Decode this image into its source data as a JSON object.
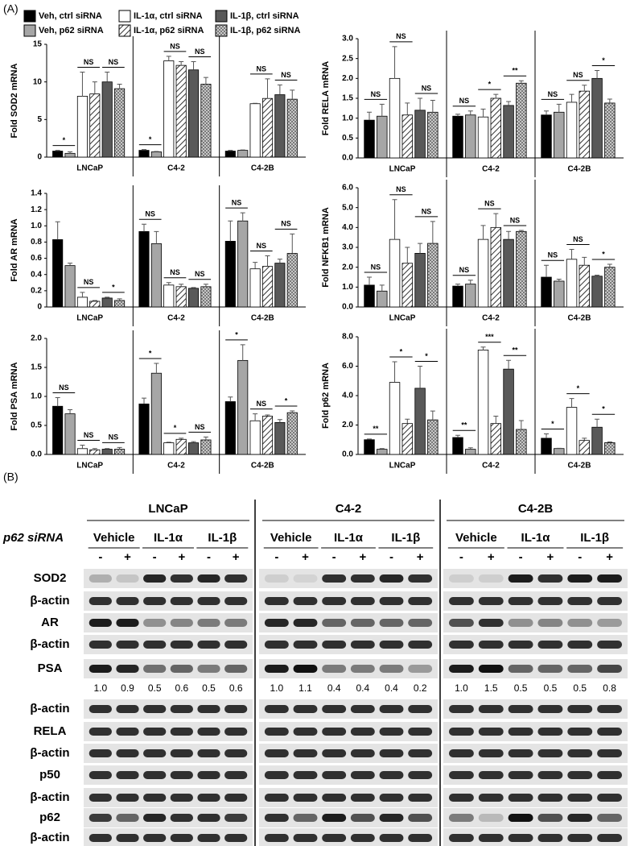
{
  "panel_a_label": "(A)",
  "legend": [
    {
      "name": "Veh, ctrl siRNA",
      "color": "#000000"
    },
    {
      "name": "Veh, p62 siRNA",
      "color": "#a6a6a6"
    },
    {
      "name": "IL-1α, ctrl siRNA",
      "color": "#ffffff"
    },
    {
      "name": "IL-1α, p62 siRNA",
      "color": "#ffffff",
      "pattern": "hatch"
    },
    {
      "name": "IL-1β, ctrl siRNA",
      "color": "#595959"
    },
    {
      "name": "IL-1β, p62 siRNA",
      "color": "#a6a6a6",
      "pattern": "check"
    }
  ],
  "chart_data": [
    {
      "type": "bar",
      "ylabel": "Fold SOD2 mRNA",
      "categories": [
        "LNCaP",
        "C4-2",
        "C4-2B"
      ],
      "series": [
        {
          "values": [
            0.8,
            0.9,
            0.8
          ],
          "errors": [
            0.1,
            0.1,
            0.1
          ]
        },
        {
          "values": [
            0.5,
            0.7,
            0.9
          ],
          "errors": [
            0.2,
            0.05,
            0.05
          ]
        },
        {
          "values": [
            8.1,
            12.8,
            7.1
          ],
          "errors": [
            3.2,
            0.6,
            0.05
          ]
        },
        {
          "values": [
            8.4,
            12.2,
            7.8
          ],
          "errors": [
            1.6,
            0.5,
            2.6
          ]
        },
        {
          "values": [
            10.0,
            11.6,
            8.3
          ],
          "errors": [
            1.3,
            1.1,
            1.3
          ]
        },
        {
          "values": [
            9.1,
            9.7,
            7.7
          ],
          "errors": [
            0.6,
            0.9,
            1.2
          ]
        }
      ],
      "significance": [
        [
          "*",
          "NS",
          "NS"
        ],
        [
          "*",
          "NS",
          "NS"
        ],
        [
          null,
          "NS",
          "NS"
        ]
      ],
      "ylim": [
        0,
        15
      ],
      "yticks": [
        0,
        5,
        10,
        15
      ]
    },
    {
      "type": "bar",
      "ylabel": "Fold RELA mRNA",
      "categories": [
        "LNCaP",
        "C4-2",
        "C4-2B"
      ],
      "series": [
        {
          "values": [
            0.95,
            1.05,
            1.08
          ],
          "errors": [
            0.2,
            0.05,
            0.1
          ]
        },
        {
          "values": [
            1.05,
            1.08,
            1.15
          ],
          "errors": [
            0.3,
            0.1,
            0.2
          ]
        },
        {
          "values": [
            2.0,
            1.03,
            1.4
          ],
          "errors": [
            0.8,
            0.2,
            0.2
          ]
        },
        {
          "values": [
            1.08,
            1.5,
            1.68
          ],
          "errors": [
            0.3,
            0.1,
            0.15
          ]
        },
        {
          "values": [
            1.2,
            1.32,
            2.0
          ],
          "errors": [
            0.3,
            0.1,
            0.2
          ]
        },
        {
          "values": [
            1.15,
            1.88,
            1.38
          ],
          "errors": [
            0.3,
            0.06,
            0.1
          ]
        }
      ],
      "significance": [
        [
          "NS",
          "NS",
          "NS"
        ],
        [
          "NS",
          "*",
          "**"
        ],
        [
          "NS",
          "NS",
          "*"
        ]
      ],
      "ylim": [
        0,
        3
      ],
      "yticks": [
        {
          "value": 0,
          "label": "0.0"
        },
        0.5,
        {
          "value": 1,
          "label": "1.0"
        },
        1.5,
        {
          "value": 2,
          "label": "2.0"
        },
        2.5,
        {
          "value": 3,
          "label": "3.0"
        }
      ]
    },
    {
      "type": "bar",
      "ylabel": "Fold AR mRNA",
      "categories": [
        "LNCaP",
        "C4-2",
        "C4-2B"
      ],
      "series": [
        {
          "values": [
            0.83,
            0.93,
            0.81
          ],
          "errors": [
            0.22,
            0.09,
            0.25
          ]
        },
        {
          "values": [
            0.51,
            0.78,
            1.06
          ],
          "errors": [
            0.03,
            0.15,
            0.1
          ]
        },
        {
          "values": [
            0.12,
            0.27,
            0.47
          ],
          "errors": [
            0.06,
            0.03,
            0.08
          ]
        },
        {
          "values": [
            0.07,
            0.25,
            0.5
          ],
          "errors": [
            0.01,
            0.03,
            0.13
          ]
        },
        {
          "values": [
            0.11,
            0.23,
            0.54
          ],
          "errors": [
            0.01,
            0.01,
            0.05
          ]
        },
        {
          "values": [
            0.08,
            0.25,
            0.66
          ],
          "errors": [
            0.02,
            0.03,
            0.24
          ]
        }
      ],
      "significance": [
        [
          null,
          "NS",
          "*"
        ],
        [
          "NS",
          "NS",
          "NS"
        ],
        [
          "NS",
          "NS",
          "NS"
        ]
      ],
      "ylim": [
        0,
        1.4
      ],
      "yticks": [
        0,
        0.2,
        0.4,
        0.6,
        0.8,
        {
          "value": 1,
          "label": "1.0"
        },
        1.2,
        1.4
      ]
    },
    {
      "type": "bar",
      "ylabel": "Fold NFKB1 mRNA",
      "categories": [
        "LNCaP",
        "C4-2",
        "C4-2B"
      ],
      "series": [
        {
          "values": [
            1.1,
            1.05,
            1.5
          ],
          "errors": [
            0.4,
            0.1,
            0.6
          ]
        },
        {
          "values": [
            0.8,
            1.15,
            1.3
          ],
          "errors": [
            0.3,
            0.2,
            0.1
          ]
        },
        {
          "values": [
            3.4,
            3.4,
            2.4
          ],
          "errors": [
            2.0,
            0.7,
            0.5
          ]
        },
        {
          "values": [
            2.2,
            4.0,
            2.1
          ],
          "errors": [
            0.8,
            0.7,
            0.4
          ]
        },
        {
          "values": [
            2.7,
            3.4,
            1.55
          ],
          "errors": [
            0.5,
            0.4,
            0.05
          ]
        },
        {
          "values": [
            3.2,
            3.8,
            2.0
          ],
          "errors": [
            1.1,
            0.05,
            0.15
          ]
        }
      ],
      "significance": [
        [
          "NS",
          "NS",
          "NS"
        ],
        [
          "NS",
          "NS",
          "NS"
        ],
        [
          "NS",
          "NS",
          "*"
        ]
      ],
      "ylim": [
        0,
        6
      ],
      "yticks": [
        {
          "value": 0,
          "label": "0.0"
        },
        {
          "value": 1,
          "label": "1.0"
        },
        {
          "value": 2,
          "label": "2.0"
        },
        {
          "value": 3,
          "label": "3.0"
        },
        {
          "value": 4,
          "label": "4.0"
        },
        {
          "value": 5,
          "label": "5.0"
        },
        {
          "value": 6,
          "label": "6.0"
        }
      ]
    },
    {
      "type": "bar",
      "ylabel": "Fold PSA mRNA",
      "categories": [
        "LNCaP",
        "C4-2",
        "C4-2B"
      ],
      "series": [
        {
          "values": [
            0.83,
            0.87,
            0.91
          ],
          "errors": [
            0.15,
            0.1,
            0.08
          ]
        },
        {
          "values": [
            0.7,
            1.4,
            1.62
          ],
          "errors": [
            0.07,
            0.17,
            0.27
          ]
        },
        {
          "values": [
            0.1,
            0.2,
            0.58
          ],
          "errors": [
            0.06,
            0.01,
            0.12
          ]
        },
        {
          "values": [
            0.08,
            0.26,
            0.66
          ],
          "errors": [
            0.02,
            0.02,
            0.02
          ]
        },
        {
          "values": [
            0.09,
            0.2,
            0.55
          ],
          "errors": [
            0.01,
            0.02,
            0.05
          ]
        },
        {
          "values": [
            0.09,
            0.25,
            0.72
          ],
          "errors": [
            0.03,
            0.05,
            0.03
          ]
        }
      ],
      "significance": [
        [
          "NS",
          "NS",
          "NS"
        ],
        [
          "*",
          "*",
          "NS"
        ],
        [
          "*",
          "NS",
          "*"
        ]
      ],
      "ylim": [
        0,
        2
      ],
      "yticks": [
        {
          "value": 0,
          "label": "0.0"
        },
        0.5,
        {
          "value": 1,
          "label": "1.0"
        },
        1.5,
        {
          "value": 2,
          "label": "2.0"
        }
      ]
    },
    {
      "type": "bar",
      "ylabel": "Fold p62 mRNA",
      "categories": [
        "LNCaP",
        "C4-2",
        "C4-2B"
      ],
      "series": [
        {
          "values": [
            1.0,
            1.15,
            1.1
          ],
          "errors": [
            0.05,
            0.15,
            0.3
          ]
        },
        {
          "values": [
            0.35,
            0.35,
            0.4
          ],
          "errors": [
            0.05,
            0.1,
            0.02
          ]
        },
        {
          "values": [
            4.9,
            7.1,
            3.2
          ],
          "errors": [
            1.4,
            0.2,
            0.6
          ]
        },
        {
          "values": [
            2.1,
            2.1,
            0.95
          ],
          "errors": [
            0.3,
            0.5,
            0.15
          ]
        },
        {
          "values": [
            4.5,
            5.8,
            1.85
          ],
          "errors": [
            1.5,
            0.6,
            0.55
          ]
        },
        {
          "values": [
            2.35,
            1.7,
            0.8
          ],
          "errors": [
            0.6,
            0.6,
            0.05
          ]
        }
      ],
      "significance": [
        [
          "**",
          "*",
          "*"
        ],
        [
          "**",
          "***",
          "**"
        ],
        [
          "*",
          "*",
          "*"
        ]
      ],
      "ylim": [
        0,
        8
      ],
      "yticks": [
        {
          "value": 0,
          "label": "0.0"
        },
        {
          "value": 2,
          "label": "2.0"
        },
        {
          "value": 4,
          "label": "4.0"
        },
        {
          "value": 6,
          "label": "6.0"
        },
        {
          "value": 8,
          "label": "8.0"
        }
      ]
    }
  ],
  "panel_b": {
    "label": "(B)",
    "row_header": "p62 siRNA",
    "cell_lines": [
      {
        "name": "LNCaP",
        "treatments": [
          "Vehicle",
          "IL-1α",
          "IL-1β"
        ],
        "signs": [
          "-",
          "+",
          "-",
          "+",
          "-",
          "+"
        ],
        "psa_quant": [
          "1.0",
          "0.9",
          "0.5",
          "0.6",
          "0.5",
          "0.6"
        ]
      },
      {
        "name": "C4-2",
        "treatments": [
          "Vehicle",
          "IL-1α",
          "IL-1β"
        ],
        "signs": [
          "-",
          "+",
          "-",
          "+",
          "-",
          "+"
        ],
        "psa_quant": [
          "1.0",
          "1.1",
          "0.4",
          "0.4",
          "0.4",
          "0.2"
        ]
      },
      {
        "name": "C4-2B",
        "treatments": [
          "Vehicle",
          "IL-1α",
          "IL-1β"
        ],
        "signs": [
          "-",
          "+",
          "-",
          "+",
          "-",
          "+"
        ],
        "psa_quant": [
          "1.0",
          "1.5",
          "0.5",
          "0.5",
          "0.5",
          "0.8"
        ]
      }
    ],
    "rows": [
      "SOD2",
      "β-actin",
      "AR",
      "β-actin",
      "PSA",
      "β-actin",
      "RELA",
      "β-actin",
      "p50",
      "β-actin",
      "p62",
      "β-actin"
    ]
  }
}
